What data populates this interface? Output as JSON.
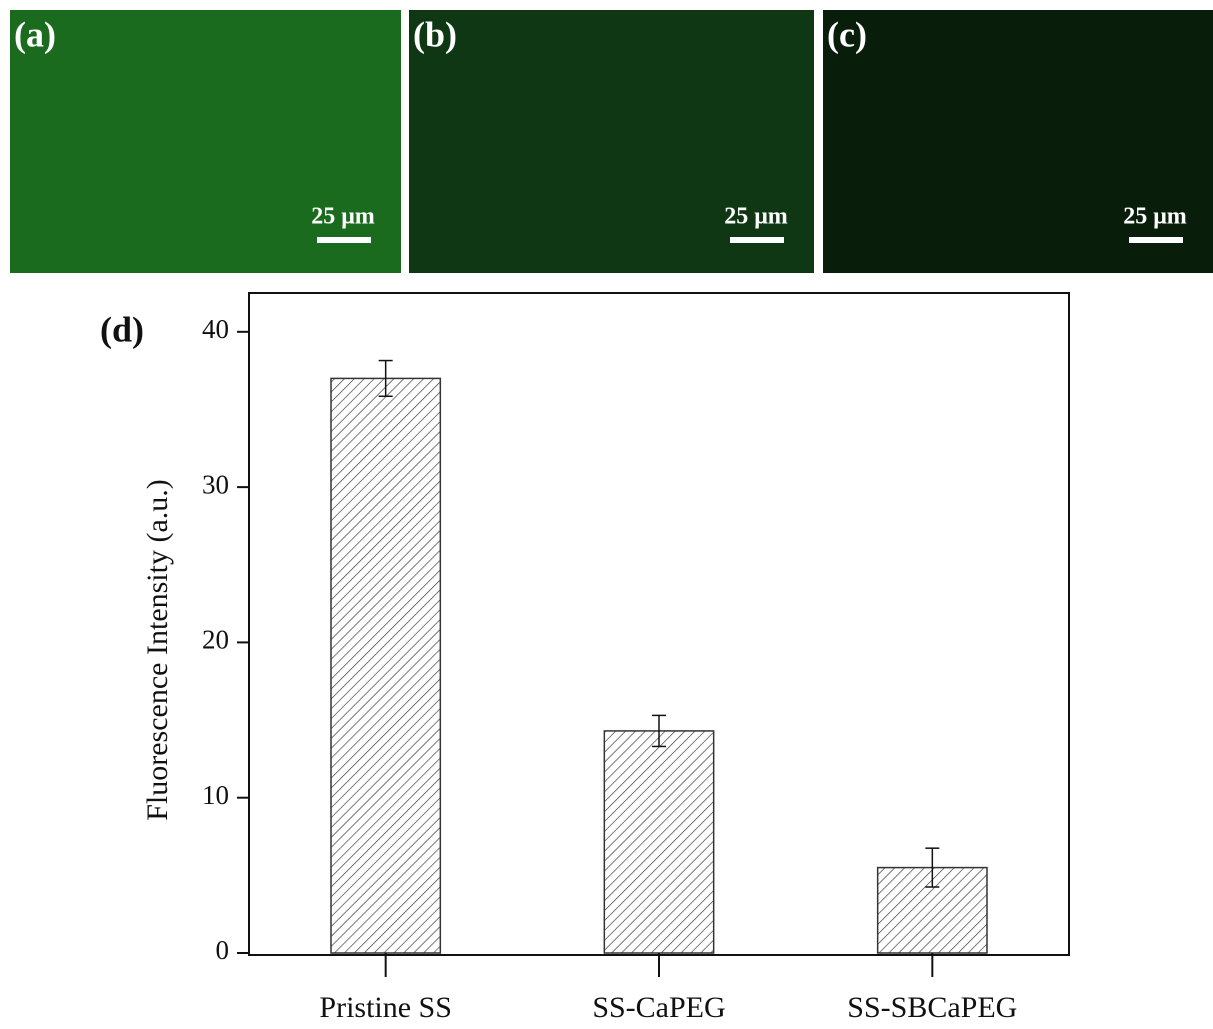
{
  "panels": [
    {
      "label": "(a)",
      "scale_bar": "25 μm",
      "color": "#1b6b1f"
    },
    {
      "label": "(b)",
      "scale_bar": "25 μm",
      "color": "#10371300"
    },
    {
      "label": "(c)",
      "scale_bar": "25 μm",
      "color": "#081e0b"
    }
  ],
  "chart_data": {
    "type": "bar",
    "panel_label": "(d)",
    "ylabel": "Fluorescence Intensity (a.u.)",
    "categories": [
      "Pristine SS",
      "SS-CaPEG",
      "SS-SBCaPEG"
    ],
    "values": [
      37.0,
      14.3,
      5.5
    ],
    "errors": [
      1.15,
      1.0,
      1.25
    ],
    "color": "#333333",
    "pattern": "hatch",
    "ylim": [
      0,
      42.5
    ],
    "yticks": [
      0,
      10,
      20,
      30,
      40
    ]
  }
}
